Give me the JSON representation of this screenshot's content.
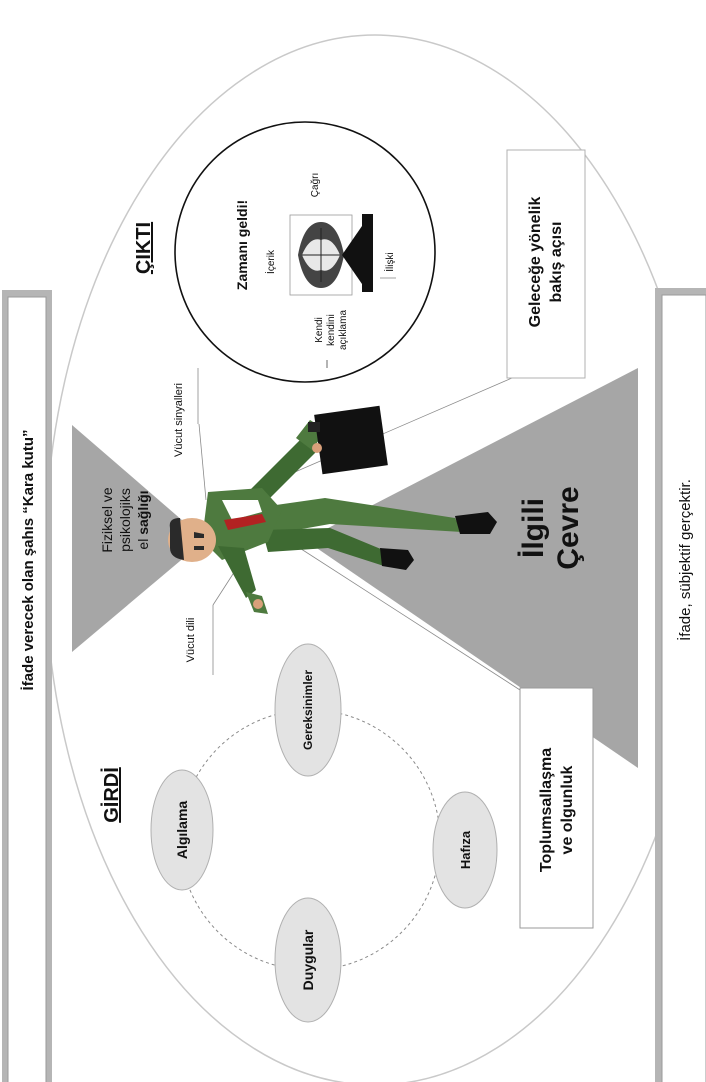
{
  "banner_left": "İfade verecek olan şahıs “Kara kutu”",
  "banner_right": "İfade, sübjektif gerçektir.",
  "girdi": {
    "heading": "GİRDİ",
    "items": [
      "Algılama",
      "Gereksinimler",
      "Hafıza",
      "Duygular"
    ]
  },
  "cikti": {
    "heading": "ÇIKTI",
    "title": "Zamanı geldi!",
    "cagri": "Çağrı",
    "icerik": "İçerik",
    "iliski": "İlişki",
    "kendi_lines": [
      "Kendi",
      "kendini",
      "açıklama"
    ]
  },
  "labels": {
    "fiziksel_lines": [
      "Fiziksel ve",
      "psikolojiks",
      "el "
    ],
    "fiziksel_bold": "sağlığı",
    "vucut_sinyalleri": "Vücut sinyalleri",
    "vucut_dili": "Vücut dili",
    "ilgili_cevre_lines": [
      "İlgili",
      "Çevre"
    ],
    "gelecege_lines": [
      "Geleceğe yönelik",
      "bakış açısı"
    ],
    "toplum_lines": [
      "Toplumsallaşma",
      "ve olgunluk"
    ]
  },
  "colors": {
    "triangle_fill": "#a6a6a6",
    "bubble_fill": "#e3e3e3",
    "suit_green": "#4e7a3f",
    "banner_border": "#9a9a9a"
  }
}
